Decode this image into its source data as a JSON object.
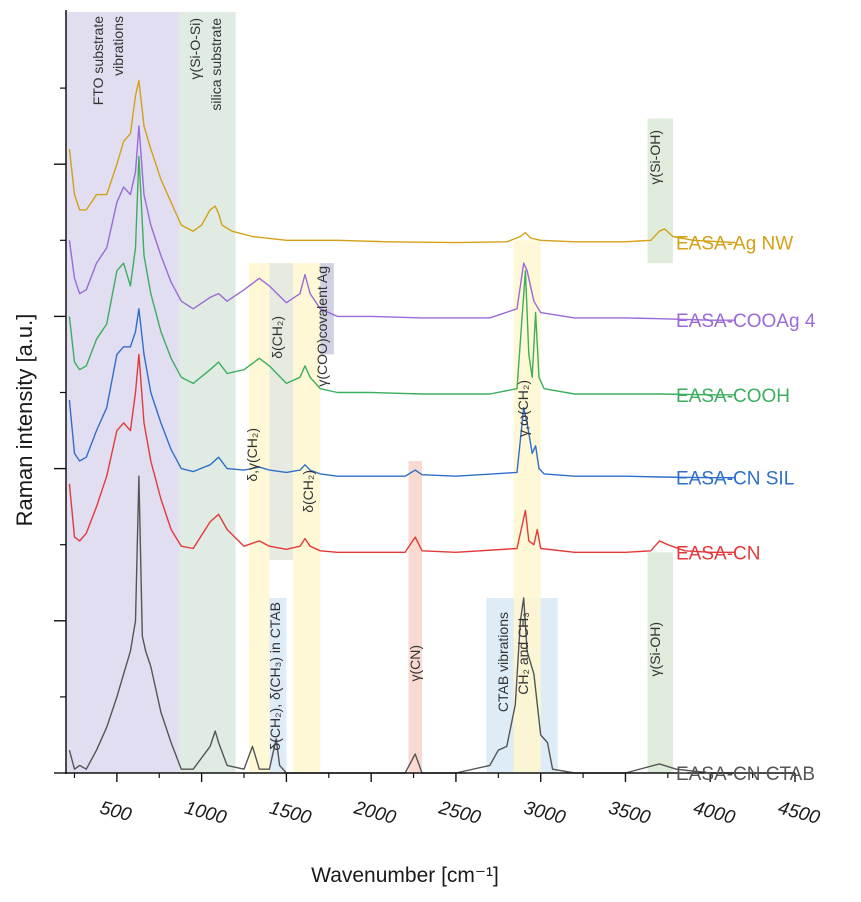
{
  "chart_data": {
    "type": "line",
    "title": "",
    "xlabel": "Wavenumber [cm⁻¹]",
    "ylabel": "Raman intensity [a.u.]",
    "xlim": [
      200,
      4500
    ],
    "ylim": [
      0,
      10
    ],
    "x_ticks": [
      500,
      1000,
      1500,
      2000,
      2500,
      3000,
      3500,
      4000,
      4500
    ],
    "x_tick_labels": [
      "500",
      "1000",
      "1500",
      "2000",
      "2500",
      "3000",
      "3500",
      "4000",
      "4500"
    ],
    "y_ticks_major": [
      0,
      2,
      4,
      6,
      8
    ],
    "y_ticks_minor": [
      1,
      3,
      5,
      7,
      9
    ],
    "y_tick_labels_shown": false,
    "grid": false,
    "legend_placement": "series names at the right end of each trace",
    "bands": [
      {
        "x0": 200,
        "x1": 870,
        "y0": 0,
        "y1": 10,
        "color": "#ddd8ee",
        "label": "FTO substrate vibrations"
      },
      {
        "x0": 870,
        "x1": 1200,
        "y0": 0,
        "y1": 10,
        "color": "#dae7df",
        "label": "γ(Si-O-Si) silica substrate"
      },
      {
        "x0": 1280,
        "x1": 1400,
        "y0": 0,
        "y1": 6.7,
        "color": "#fff7cf",
        "label": "δ,γ(CH₂)"
      },
      {
        "x0": 1400,
        "x1": 1540,
        "y0": 2.8,
        "y1": 6.7,
        "color": "#e3e6dc",
        "label": "δ(CH₃)"
      },
      {
        "x0": 1540,
        "x1": 1700,
        "y0": 0,
        "y1": 6.7,
        "color": "#fff7cf",
        "label": "δ(CH₂)"
      },
      {
        "x0": 1400,
        "x1": 1500,
        "y0": 0,
        "y1": 2.3,
        "color": "#d7e9f6",
        "label": "δ(CH₂), δ(CH₃) in CTAB"
      },
      {
        "x0": 1700,
        "x1": 1780,
        "y0": 5.5,
        "y1": 6.7,
        "color": "#c9c9df",
        "label": "γ(COO)covalent Ag"
      },
      {
        "x0": 2220,
        "x1": 2300,
        "y0": 0,
        "y1": 4.1,
        "color": "#f8d4c8",
        "label": "γ(CN)"
      },
      {
        "x0": 2680,
        "x1": 3100,
        "y0": 0,
        "y1": 2.3,
        "color": "#d7e9f6",
        "label": "CTAB vibrations"
      },
      {
        "x0": 2840,
        "x1": 3000,
        "y0": 0,
        "y1": 7.0,
        "color": "#fff7cf",
        "label": "γ,ω(CH₂)"
      },
      {
        "x0": 3630,
        "x1": 3780,
        "y0": 6.7,
        "y1": 8.6,
        "color": "#d9e9d6",
        "label": "γ(Si-OH)"
      },
      {
        "x0": 3630,
        "x1": 3780,
        "y0": 0,
        "y1": 2.9,
        "color": "#d9e9d6",
        "label": "γ(Si-OH)"
      }
    ],
    "extra_labels": [
      {
        "text": "CH₂ and CH₃"
      }
    ],
    "series": [
      {
        "name": "EASA-Ag NW",
        "color": "#d4a017",
        "baseline": 7.0,
        "x": [
          220,
          250,
          280,
          320,
          380,
          440,
          500,
          540,
          580,
          610,
          630,
          660,
          700,
          760,
          820,
          880,
          950,
          1000,
          1050,
          1080,
          1100,
          1120,
          1180,
          1300,
          1500,
          1800,
          2100,
          2500,
          2800,
          2880,
          2910,
          2940,
          3000,
          3200,
          3500,
          3650,
          3700,
          3730,
          3780,
          3900,
          4150
        ],
        "values": [
          8.2,
          7.6,
          7.4,
          7.4,
          7.6,
          7.6,
          8.0,
          8.3,
          8.4,
          8.9,
          9.1,
          8.5,
          8.2,
          7.8,
          7.5,
          7.2,
          7.12,
          7.2,
          7.4,
          7.45,
          7.35,
          7.2,
          7.12,
          7.05,
          7.0,
          7.0,
          6.98,
          6.97,
          6.98,
          7.05,
          7.1,
          7.03,
          7.0,
          6.98,
          6.98,
          7.0,
          7.12,
          7.15,
          7.05,
          7.0,
          6.97
        ]
      },
      {
        "name": "EASA-COOAg 4",
        "color": "#9a6ad8",
        "baseline": 6.0,
        "x": [
          220,
          250,
          280,
          320,
          380,
          440,
          500,
          540,
          580,
          610,
          630,
          660,
          700,
          760,
          820,
          880,
          950,
          1050,
          1100,
          1150,
          1250,
          1340,
          1400,
          1500,
          1580,
          1610,
          1640,
          1700,
          1800,
          2000,
          2300,
          2700,
          2860,
          2900,
          2920,
          2960,
          3000,
          3200,
          3500,
          3700,
          4000,
          4150
        ],
        "values": [
          7.0,
          6.5,
          6.3,
          6.35,
          6.7,
          6.9,
          7.5,
          7.7,
          7.6,
          7.9,
          8.5,
          7.6,
          7.2,
          6.8,
          6.45,
          6.2,
          6.1,
          6.25,
          6.3,
          6.2,
          6.35,
          6.5,
          6.4,
          6.18,
          6.3,
          6.55,
          6.3,
          6.1,
          6.0,
          6.0,
          5.98,
          5.98,
          6.1,
          6.7,
          6.6,
          6.2,
          6.05,
          5.98,
          5.98,
          5.97,
          5.95,
          5.95
        ]
      },
      {
        "name": "EASA-COOH",
        "color": "#3cae5e",
        "baseline": 5.0,
        "x": [
          220,
          250,
          280,
          320,
          380,
          440,
          500,
          540,
          580,
          610,
          630,
          660,
          700,
          760,
          820,
          880,
          950,
          1050,
          1100,
          1150,
          1250,
          1340,
          1400,
          1500,
          1580,
          1610,
          1640,
          1700,
          1800,
          2000,
          2300,
          2700,
          2860,
          2910,
          2930,
          2950,
          2970,
          2990,
          3020,
          3200,
          3500,
          3700,
          4000,
          4150
        ],
        "values": [
          6.0,
          5.4,
          5.3,
          5.35,
          5.7,
          5.9,
          6.6,
          6.7,
          6.4,
          6.9,
          8.1,
          6.8,
          6.3,
          5.8,
          5.45,
          5.2,
          5.12,
          5.3,
          5.4,
          5.25,
          5.3,
          5.45,
          5.35,
          5.12,
          5.2,
          5.35,
          5.2,
          5.05,
          5.0,
          5.0,
          4.98,
          4.98,
          5.05,
          6.6,
          5.5,
          5.2,
          6.05,
          5.2,
          5.05,
          4.98,
          4.98,
          4.98,
          4.97,
          4.97
        ]
      },
      {
        "name": "EASA-CN SIL",
        "color": "#2f6fc9",
        "baseline": 3.9,
        "x": [
          220,
          250,
          280,
          320,
          380,
          440,
          500,
          540,
          580,
          610,
          630,
          660,
          700,
          760,
          820,
          880,
          950,
          1050,
          1100,
          1150,
          1250,
          1340,
          1400,
          1500,
          1580,
          1610,
          1640,
          1700,
          1800,
          2000,
          2200,
          2260,
          2300,
          2500,
          2860,
          2900,
          2920,
          2950,
          2970,
          2990,
          3020,
          3200,
          3500,
          3700,
          4000,
          4150
        ],
        "values": [
          4.9,
          4.2,
          4.1,
          4.15,
          4.5,
          4.8,
          5.5,
          5.6,
          5.6,
          5.8,
          6.1,
          5.5,
          5.0,
          4.6,
          4.25,
          4.0,
          3.96,
          4.05,
          4.15,
          4.0,
          3.98,
          4.02,
          3.98,
          3.95,
          3.98,
          4.05,
          3.98,
          3.93,
          3.9,
          3.9,
          3.9,
          3.98,
          3.92,
          3.9,
          3.95,
          4.8,
          4.6,
          4.2,
          4.3,
          4.0,
          3.93,
          3.9,
          3.9,
          3.89,
          3.88,
          3.88
        ]
      },
      {
        "name": "EASA-CN",
        "color": "#e23a3a",
        "baseline": 2.9,
        "x": [
          220,
          250,
          280,
          320,
          380,
          440,
          500,
          540,
          580,
          610,
          630,
          660,
          700,
          760,
          820,
          880,
          950,
          1050,
          1100,
          1150,
          1250,
          1340,
          1400,
          1500,
          1580,
          1610,
          1640,
          1700,
          1800,
          2000,
          2200,
          2260,
          2300,
          2500,
          2860,
          2910,
          2930,
          2960,
          2980,
          3000,
          3200,
          3500,
          3650,
          3700,
          3750,
          3850,
          4000,
          4150
        ],
        "values": [
          3.8,
          3.1,
          3.05,
          3.15,
          3.5,
          3.9,
          4.5,
          4.6,
          4.5,
          5.0,
          5.5,
          4.6,
          4.1,
          3.6,
          3.2,
          2.98,
          2.95,
          3.3,
          3.4,
          3.2,
          2.98,
          3.05,
          2.98,
          2.94,
          2.98,
          3.08,
          2.98,
          2.92,
          2.9,
          2.9,
          2.9,
          3.1,
          2.92,
          2.9,
          2.95,
          3.45,
          3.05,
          3.0,
          3.2,
          2.95,
          2.9,
          2.9,
          2.92,
          3.05,
          3.0,
          2.92,
          2.9,
          2.9
        ]
      },
      {
        "name": "EASA-CN CTAB",
        "color": "#555555",
        "baseline": 0.0,
        "x": [
          220,
          250,
          280,
          320,
          380,
          440,
          500,
          540,
          580,
          610,
          630,
          650,
          670,
          700,
          760,
          820,
          880,
          950,
          1050,
          1080,
          1100,
          1150,
          1250,
          1300,
          1340,
          1400,
          1440,
          1460,
          1500,
          1600,
          1800,
          2000,
          2200,
          2260,
          2300,
          2500,
          2700,
          2750,
          2800,
          2850,
          2880,
          2900,
          2920,
          2960,
          3000,
          3040,
          3070,
          3200,
          3500,
          3700,
          3800,
          4000,
          4150
        ],
        "values": [
          0.3,
          0.05,
          0.1,
          0.05,
          0.3,
          0.6,
          1.0,
          1.3,
          1.6,
          2.0,
          3.9,
          1.8,
          1.6,
          1.4,
          0.8,
          0.4,
          0.05,
          0.05,
          0.35,
          0.55,
          0.4,
          0.1,
          0.05,
          0.35,
          0.05,
          0.05,
          0.45,
          0.1,
          0.0,
          0.0,
          0.0,
          0.0,
          0.0,
          0.25,
          0.0,
          0.0,
          0.1,
          0.3,
          0.35,
          0.9,
          2.0,
          2.3,
          1.6,
          1.3,
          0.5,
          0.4,
          0.05,
          0.0,
          0.0,
          0.12,
          0.05,
          0.0,
          0.0
        ]
      }
    ]
  }
}
